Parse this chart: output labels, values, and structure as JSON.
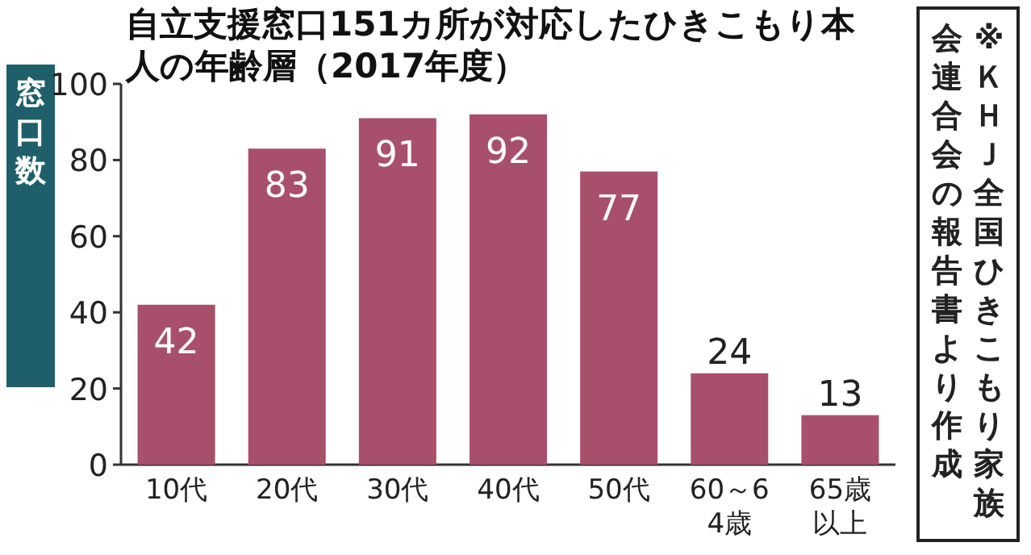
{
  "chart_data": {
    "type": "bar",
    "title": "自立支援窓口151カ所が対応したひきこもり本人の年齢層（2017年度）",
    "ylabel": "窓口数",
    "categories": [
      "10代",
      "20代",
      "30代",
      "40代",
      "50代",
      "60～64歳",
      "65歳以上"
    ],
    "values": [
      42,
      83,
      91,
      92,
      77,
      24,
      13
    ],
    "color": "#a84f6c",
    "ylim": [
      0,
      100
    ],
    "yticks": [
      0,
      20,
      40,
      60,
      80,
      100
    ],
    "data_labels": true,
    "grid": false,
    "annotations": [
      "※ＫＨＪ全国ひきこもり家族会連合会の報告書より作成"
    ]
  }
}
